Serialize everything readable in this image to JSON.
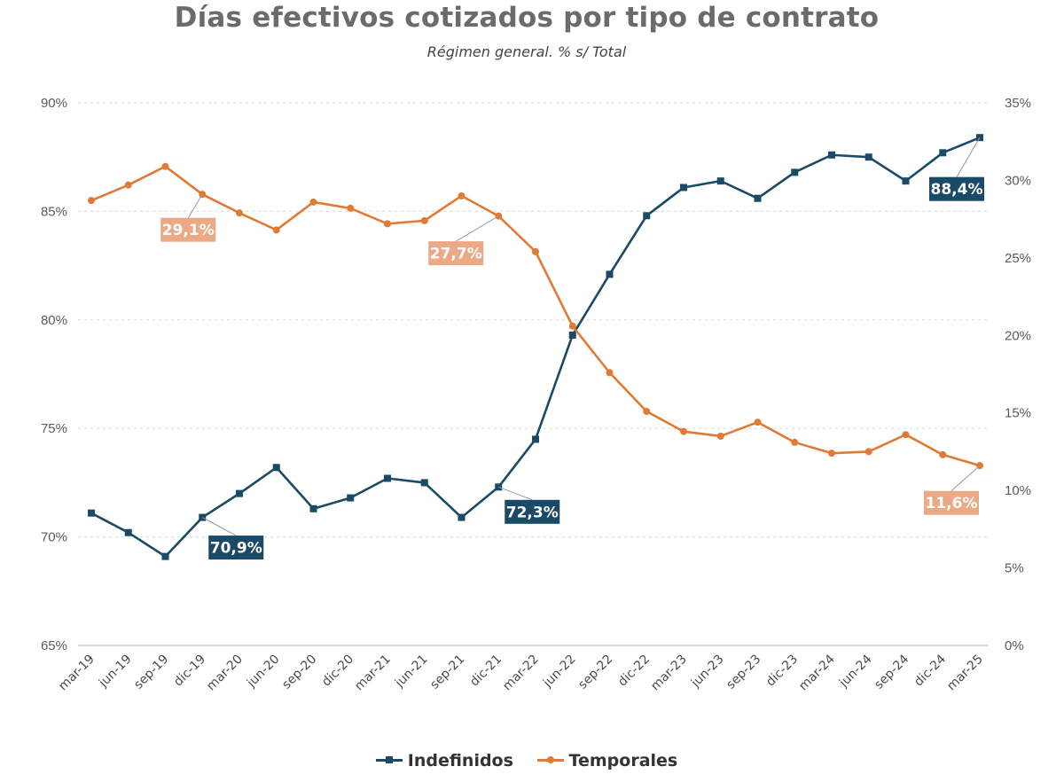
{
  "chart_data": {
    "type": "line",
    "title": "Días efectivos cotizados por tipo de contrato",
    "subtitle": "Régimen general. % s/ Total",
    "categories": [
      "mar-19",
      "jun-19",
      "sep-19",
      "dic-19",
      "mar-20",
      "jun-20",
      "sep-20",
      "dic-20",
      "mar-21",
      "jun-21",
      "sep-21",
      "dic-21",
      "mar-22",
      "jun-22",
      "sep-22",
      "dic-22",
      "mar-23",
      "jun-23",
      "sep-23",
      "dic-23",
      "mar-24",
      "jun-24",
      "sep-24",
      "dic-24",
      "mar-25"
    ],
    "y_left": {
      "min": 65,
      "max": 90,
      "step": 5,
      "ticks": [
        "65%",
        "70%",
        "75%",
        "80%",
        "85%",
        "90%"
      ]
    },
    "y_right": {
      "min": 0,
      "max": 35,
      "step": 5,
      "ticks": [
        "0%",
        "5%",
        "10%",
        "15%",
        "20%",
        "25%",
        "30%",
        "35%"
      ]
    },
    "grid": "horizontal dashed",
    "legend_position": "bottom",
    "series": [
      {
        "name": "Indefinidos",
        "axis": "left",
        "color": "#1a4a66",
        "marker": "square",
        "values": [
          71.1,
          70.2,
          69.1,
          70.9,
          72.0,
          73.2,
          71.3,
          71.8,
          72.7,
          72.5,
          70.9,
          72.3,
          74.5,
          79.3,
          82.1,
          84.8,
          86.1,
          86.4,
          85.6,
          86.8,
          87.6,
          87.5,
          86.4,
          87.7,
          88.4
        ]
      },
      {
        "name": "Temporales",
        "axis": "right",
        "color": "#e07a35",
        "marker": "circle",
        "values": [
          28.7,
          29.7,
          30.9,
          29.1,
          27.9,
          26.8,
          28.6,
          28.2,
          27.2,
          27.4,
          29.0,
          27.7,
          25.4,
          20.6,
          17.6,
          15.1,
          13.8,
          13.5,
          14.4,
          13.1,
          12.4,
          12.5,
          13.6,
          12.3,
          11.6
        ]
      }
    ],
    "annotations": [
      {
        "series": 0,
        "index": 3,
        "text": "70,9%",
        "bg": "#1a4a66"
      },
      {
        "series": 0,
        "index": 11,
        "text": "72,3%",
        "bg": "#1a4a66"
      },
      {
        "series": 0,
        "index": 24,
        "text": "88,4%",
        "bg": "#1a4a66"
      },
      {
        "series": 1,
        "index": 3,
        "text": "29,1%",
        "bg": "#eba985"
      },
      {
        "series": 1,
        "index": 11,
        "text": "27,7%",
        "bg": "#eba985"
      },
      {
        "series": 1,
        "index": 24,
        "text": "11,6%",
        "bg": "#eba985"
      }
    ]
  }
}
